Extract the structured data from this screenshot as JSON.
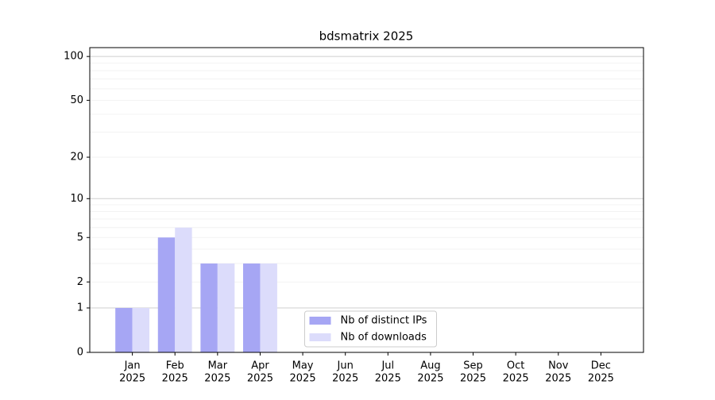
{
  "chart_data": {
    "type": "bar",
    "title": "bdsmatrix 2025",
    "categories": [
      [
        "Jan",
        "2025"
      ],
      [
        "Feb",
        "2025"
      ],
      [
        "Mar",
        "2025"
      ],
      [
        "Apr",
        "2025"
      ],
      [
        "May",
        "2025"
      ],
      [
        "Jun",
        "2025"
      ],
      [
        "Jul",
        "2025"
      ],
      [
        "Aug",
        "2025"
      ],
      [
        "Sep",
        "2025"
      ],
      [
        "Oct",
        "2025"
      ],
      [
        "Nov",
        "2025"
      ],
      [
        "Dec",
        "2025"
      ]
    ],
    "series": [
      {
        "name": "Nb of distinct IPs",
        "color": "#a6a6f4",
        "values": [
          1,
          5,
          3,
          3,
          0,
          0,
          0,
          0,
          0,
          0,
          0,
          0
        ]
      },
      {
        "name": "Nb of downloads",
        "color": "#dcdcfb",
        "values": [
          1,
          6,
          3,
          3,
          0,
          0,
          0,
          0,
          0,
          0,
          0,
          0
        ]
      }
    ],
    "yscale": "log1p",
    "ylim": [
      0,
      115
    ],
    "yticks": [
      0,
      1,
      2,
      5,
      10,
      20,
      50,
      100
    ],
    "y_major_grid": [
      1,
      10,
      100
    ],
    "y_minor_grid": [
      2,
      3,
      4,
      5,
      6,
      7,
      8,
      9,
      20,
      30,
      40,
      50,
      60,
      70,
      80,
      90
    ],
    "grid": true,
    "legend": "lower center"
  }
}
